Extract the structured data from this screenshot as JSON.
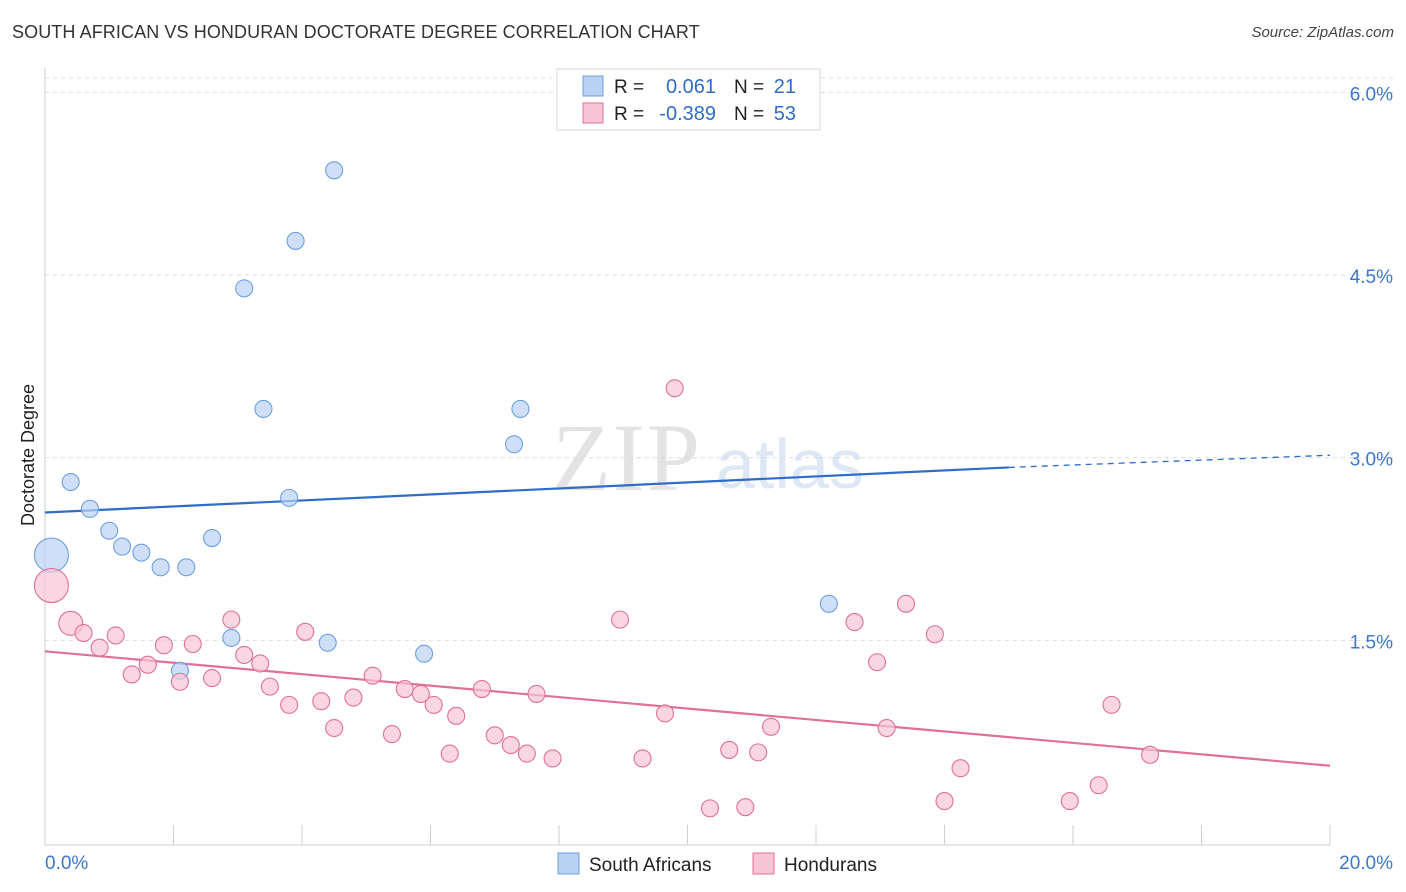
{
  "title": "SOUTH AFRICAN VS HONDURAN DOCTORATE DEGREE CORRELATION CHART",
  "source": "Source: ZipAtlas.com",
  "watermark": {
    "zip": "ZIP",
    "atlas": "atlas"
  },
  "chart_data": {
    "type": "scatter",
    "xlabel": "",
    "ylabel": "Doctorate Degree",
    "xlim": [
      0,
      20
    ],
    "ylim": [
      0,
      6.2
    ],
    "x_tick_labels": [
      "0.0%",
      "20.0%"
    ],
    "y_ticks": [
      1.5,
      3.0,
      4.5,
      6.0
    ],
    "y_tick_labels": [
      "1.5%",
      "3.0%",
      "4.5%",
      "6.0%"
    ],
    "grid": true,
    "legend": {
      "placement": "top-center",
      "rows": [
        {
          "r_label": "R =",
          "r_value": "0.061",
          "n_label": "N =",
          "n_value": "21"
        },
        {
          "r_label": "R =",
          "r_value": "-0.389",
          "n_label": "N =",
          "n_value": "53"
        }
      ]
    },
    "series": [
      {
        "name": "South Africans",
        "color": "#6fa0de",
        "fill": "#b9d2f3",
        "trend": {
          "x": [
            0,
            15
          ],
          "y": [
            2.55,
            2.92
          ],
          "dashed_to": [
            20,
            3.02
          ]
        },
        "points": [
          {
            "x": 0.1,
            "y": 2.2,
            "big": true
          },
          {
            "x": 0.4,
            "y": 2.8
          },
          {
            "x": 0.7,
            "y": 2.58
          },
          {
            "x": 1.0,
            "y": 2.4
          },
          {
            "x": 1.2,
            "y": 2.27
          },
          {
            "x": 1.5,
            "y": 2.22
          },
          {
            "x": 1.8,
            "y": 2.1
          },
          {
            "x": 2.2,
            "y": 2.1
          },
          {
            "x": 2.6,
            "y": 2.34
          },
          {
            "x": 2.9,
            "y": 1.52
          },
          {
            "x": 2.1,
            "y": 1.25
          },
          {
            "x": 3.1,
            "y": 4.39
          },
          {
            "x": 3.4,
            "y": 3.4
          },
          {
            "x": 3.8,
            "y": 2.67
          },
          {
            "x": 3.9,
            "y": 4.78
          },
          {
            "x": 4.5,
            "y": 5.36
          },
          {
            "x": 4.4,
            "y": 1.48
          },
          {
            "x": 5.9,
            "y": 1.39
          },
          {
            "x": 7.3,
            "y": 3.11
          },
          {
            "x": 7.4,
            "y": 3.4
          },
          {
            "x": 12.2,
            "y": 1.8
          }
        ]
      },
      {
        "name": "Hondurans",
        "color": "#e0709a",
        "fill": "#f6c4d4",
        "trend": {
          "x": [
            0,
            20
          ],
          "y": [
            1.41,
            0.47
          ]
        },
        "points": [
          {
            "x": 0.1,
            "y": 1.95,
            "big": true
          },
          {
            "x": 0.4,
            "y": 1.64,
            "mid": true
          },
          {
            "x": 0.6,
            "y": 1.56
          },
          {
            "x": 0.85,
            "y": 1.44
          },
          {
            "x": 1.1,
            "y": 1.54
          },
          {
            "x": 1.35,
            "y": 1.22
          },
          {
            "x": 1.6,
            "y": 1.3
          },
          {
            "x": 1.85,
            "y": 1.46
          },
          {
            "x": 2.1,
            "y": 1.16
          },
          {
            "x": 2.3,
            "y": 1.47
          },
          {
            "x": 2.6,
            "y": 1.19
          },
          {
            "x": 2.9,
            "y": 1.67
          },
          {
            "x": 3.1,
            "y": 1.38
          },
          {
            "x": 3.35,
            "y": 1.31
          },
          {
            "x": 3.5,
            "y": 1.12
          },
          {
            "x": 3.8,
            "y": 0.97
          },
          {
            "x": 4.05,
            "y": 1.57
          },
          {
            "x": 4.3,
            "y": 1.0
          },
          {
            "x": 4.5,
            "y": 0.78
          },
          {
            "x": 4.8,
            "y": 1.03
          },
          {
            "x": 5.1,
            "y": 1.21
          },
          {
            "x": 5.4,
            "y": 0.73
          },
          {
            "x": 5.6,
            "y": 1.1
          },
          {
            "x": 5.85,
            "y": 1.06
          },
          {
            "x": 6.05,
            "y": 0.97
          },
          {
            "x": 6.3,
            "y": 0.57
          },
          {
            "x": 6.4,
            "y": 0.88
          },
          {
            "x": 6.8,
            "y": 1.1
          },
          {
            "x": 7.0,
            "y": 0.72
          },
          {
            "x": 7.25,
            "y": 0.64
          },
          {
            "x": 7.5,
            "y": 0.57
          },
          {
            "x": 7.65,
            "y": 1.06
          },
          {
            "x": 7.9,
            "y": 0.53
          },
          {
            "x": 8.95,
            "y": 1.67
          },
          {
            "x": 9.3,
            "y": 0.53
          },
          {
            "x": 9.65,
            "y": 0.9
          },
          {
            "x": 9.8,
            "y": 3.57
          },
          {
            "x": 10.35,
            "y": 0.12
          },
          {
            "x": 10.65,
            "y": 0.6
          },
          {
            "x": 10.9,
            "y": 0.13
          },
          {
            "x": 11.1,
            "y": 0.58
          },
          {
            "x": 11.3,
            "y": 0.79
          },
          {
            "x": 12.6,
            "y": 1.65
          },
          {
            "x": 12.95,
            "y": 1.32
          },
          {
            "x": 13.1,
            "y": 0.78
          },
          {
            "x": 13.4,
            "y": 1.8
          },
          {
            "x": 13.85,
            "y": 1.55
          },
          {
            "x": 14.0,
            "y": 0.18
          },
          {
            "x": 14.25,
            "y": 0.45
          },
          {
            "x": 15.95,
            "y": 0.18
          },
          {
            "x": 16.4,
            "y": 0.31
          },
          {
            "x": 16.6,
            "y": 0.97
          },
          {
            "x": 17.2,
            "y": 0.56
          }
        ]
      }
    ]
  }
}
